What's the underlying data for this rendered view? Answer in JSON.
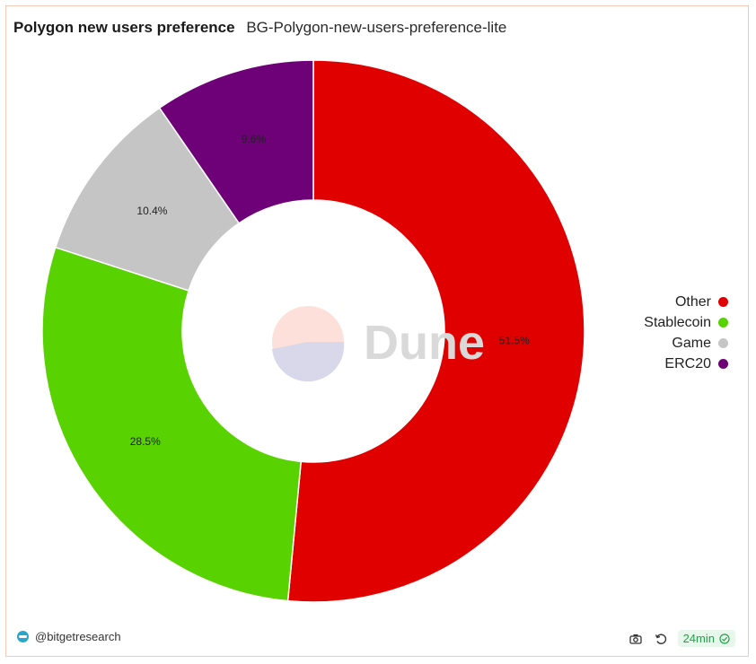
{
  "header": {
    "title": "Polygon new users preference",
    "subtitle": "BG-Polygon-new-users-preference-lite"
  },
  "watermark": {
    "text": "Dune"
  },
  "chart_data": {
    "type": "pie",
    "donut": true,
    "title": "Polygon new users preference",
    "slices": [
      {
        "label": "Other",
        "value": 51.5,
        "display": "51.5%",
        "color": "#e00000"
      },
      {
        "label": "Stablecoin",
        "value": 28.5,
        "display": "28.5%",
        "color": "#58d200"
      },
      {
        "label": "Game",
        "value": 10.4,
        "display": "10.4%",
        "color": "#c5c5c5"
      },
      {
        "label": "ERC20",
        "value": 9.6,
        "display": "9.6%",
        "color": "#6e0078"
      }
    ],
    "legend_position": "right",
    "start_angle": "top, clockwise"
  },
  "legend": [
    {
      "label": "Other",
      "color": "#e00000"
    },
    {
      "label": "Stablecoin",
      "color": "#58d200"
    },
    {
      "label": "Game",
      "color": "#c5c5c5"
    },
    {
      "label": "ERC20",
      "color": "#6e0078"
    }
  ],
  "footer": {
    "author": "@bitgetresearch",
    "refresh_age": "24min",
    "icons": {
      "camera": "camera-icon",
      "refresh": "refresh-icon",
      "check": "check-circle-icon"
    }
  }
}
